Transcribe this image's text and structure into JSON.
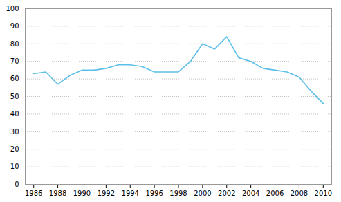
{
  "chart_data": {
    "type": "line",
    "x": [
      1986,
      1987,
      1988,
      1989,
      1990,
      1991,
      1992,
      1993,
      1994,
      1995,
      1996,
      1997,
      1998,
      1999,
      2000,
      2001,
      2002,
      2003,
      2004,
      2005,
      2006,
      2007,
      2008,
      2009,
      2010
    ],
    "values": [
      63,
      64,
      57,
      62,
      65,
      65,
      66,
      68,
      68,
      67,
      64,
      64,
      64,
      70,
      80,
      77,
      84,
      72,
      70,
      66,
      65,
      64,
      61,
      53,
      46
    ],
    "color": "#5bbfe8",
    "xlim": [
      1985.3,
      2010.7
    ],
    "xticks": [
      1986,
      1988,
      1990,
      1992,
      1994,
      1996,
      1998,
      2000,
      2002,
      2004,
      2006,
      2008,
      2010
    ],
    "ylim": [
      0,
      100
    ],
    "yticks": [
      0,
      10,
      20,
      30,
      40,
      50,
      60,
      70,
      80,
      90,
      100
    ],
    "grid": true
  }
}
